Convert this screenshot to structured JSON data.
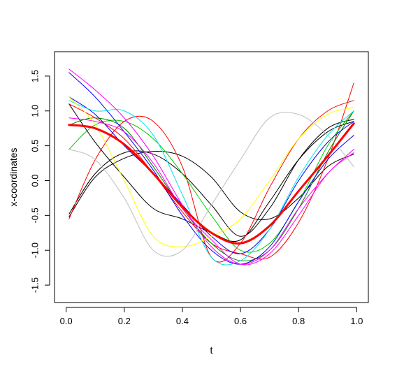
{
  "chart_data": {
    "type": "line",
    "title": "",
    "xlabel": "t",
    "ylabel": "x-coordinates",
    "xlim": [
      -0.04,
      1.04
    ],
    "ylim": [
      -1.75,
      1.85
    ],
    "grid": false,
    "legend": "none",
    "x_ticks": [
      0,
      0.2,
      0.4,
      0.6,
      0.8,
      1
    ],
    "x_tick_labels": [
      "0.0",
      "0.2",
      "0.4",
      "0.6",
      "0.8",
      "1.0"
    ],
    "y_ticks": [
      -1.5,
      -1,
      -0.5,
      0,
      0.5,
      1,
      1.5
    ],
    "y_tick_labels": [
      "-1.5",
      "-1.0",
      "-0.5",
      "0.0",
      "0.5",
      "1.0",
      "1.5"
    ],
    "x": [
      0.01,
      0.1,
      0.2,
      0.3,
      0.4,
      0.5,
      0.6,
      0.7,
      0.8,
      0.9,
      0.99
    ],
    "series": [
      {
        "color": "#000000",
        "width": 1,
        "values": [
          -0.52,
          0.05,
          0.32,
          0.42,
          0.35,
          0.05,
          -0.45,
          -0.55,
          -0.25,
          0.2,
          0.38
        ]
      },
      {
        "color": "#000000",
        "width": 1,
        "values": [
          -0.48,
          0.1,
          0.4,
          0.38,
          0.1,
          -0.35,
          -0.8,
          -0.4,
          0.3,
          0.75,
          0.88
        ]
      },
      {
        "color": "#000000",
        "width": 1,
        "values": [
          1.1,
          0.55,
          0.05,
          -0.4,
          -0.55,
          -0.75,
          -0.85,
          -0.3,
          0.3,
          0.7,
          0.85
        ]
      },
      {
        "color": "#ff0000",
        "width": 1,
        "values": [
          -0.55,
          0.3,
          0.85,
          0.85,
          0.2,
          -1.1,
          -0.9,
          -0.1,
          0.6,
          1.0,
          1.15
        ]
      },
      {
        "color": "#ff0000",
        "width": 1,
        "values": [
          1.1,
          0.9,
          0.6,
          0.1,
          -0.45,
          -0.9,
          -1.05,
          -1.1,
          -0.6,
          0.3,
          1.4
        ]
      },
      {
        "color": "#00cd00",
        "width": 1,
        "values": [
          0.45,
          0.8,
          0.85,
          0.6,
          0.1,
          -0.5,
          -1.0,
          -0.9,
          -0.3,
          0.5,
          1.0
        ]
      },
      {
        "color": "#008000",
        "width": 1,
        "values": [
          0.8,
          0.9,
          0.75,
          0.2,
          -0.4,
          -0.9,
          -1.15,
          -1.0,
          -0.4,
          0.4,
          1.0
        ]
      },
      {
        "color": "#0000ff",
        "width": 1,
        "values": [
          1.2,
          0.95,
          0.5,
          0.1,
          -0.35,
          -0.8,
          -1.05,
          -0.7,
          0.0,
          0.55,
          0.85
        ]
      },
      {
        "color": "#0000ff",
        "width": 1,
        "values": [
          1.55,
          1.2,
          0.7,
          0.15,
          -0.5,
          -1.0,
          -1.2,
          -0.95,
          -0.3,
          0.3,
          0.65
        ]
      },
      {
        "color": "#00e5e5",
        "width": 1,
        "values": [
          1.15,
          1.0,
          1.0,
          0.65,
          -0.2,
          -1.1,
          -1.15,
          -0.7,
          0.05,
          0.65,
          1.0
        ]
      },
      {
        "color": "#ff00ff",
        "width": 1,
        "values": [
          1.6,
          1.3,
          0.9,
          0.35,
          -0.35,
          -0.95,
          -1.2,
          -1.0,
          -0.4,
          0.1,
          0.45
        ]
      },
      {
        "color": "#ff00ff",
        "width": 1,
        "values": [
          0.9,
          0.85,
          0.7,
          0.25,
          -0.4,
          -0.85,
          -1.2,
          -1.05,
          -0.5,
          0.1,
          0.4
        ]
      },
      {
        "color": "#ffff00",
        "width": 1,
        "values": [
          1.2,
          0.8,
          0.0,
          -0.8,
          -0.95,
          -0.8,
          -0.55,
          0.0,
          0.6,
          0.95,
          1.05
        ]
      },
      {
        "color": "#bebebe",
        "width": 1,
        "values": [
          0.45,
          0.3,
          -0.25,
          -1.0,
          -1.0,
          -0.35,
          0.3,
          0.9,
          0.95,
          0.65,
          0.2
        ]
      },
      {
        "color": "#ff0000",
        "width": 3,
        "values": [
          0.8,
          0.75,
          0.52,
          0.1,
          -0.38,
          -0.75,
          -0.9,
          -0.65,
          -0.15,
          0.35,
          0.82
        ]
      }
    ]
  }
}
